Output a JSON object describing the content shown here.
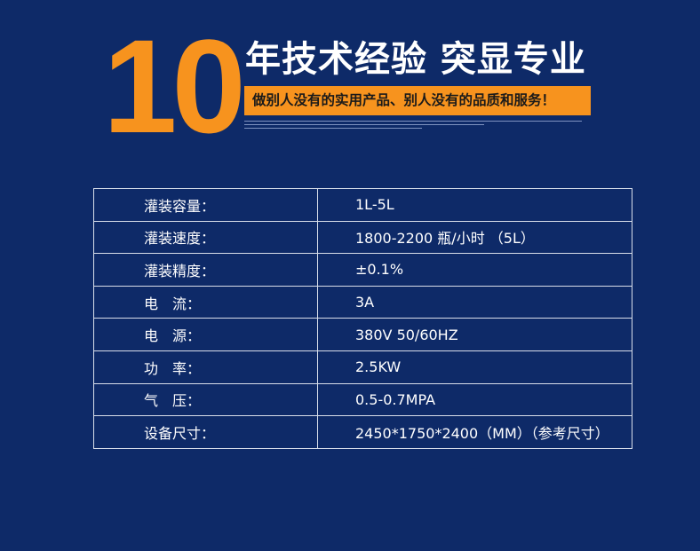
{
  "header": {
    "number": "10",
    "title": "年技术经验 突显专业",
    "slogan": "做别人没有的实用产品、别人没有的品质和服务！"
  },
  "table": {
    "rows": [
      [
        "灌装容量：",
        "1L-5L"
      ],
      [
        "灌装速度：",
        "1800-2200 瓶/小时 （5L）"
      ],
      [
        "灌装精度：",
        "±0.1%"
      ],
      [
        "电　流：",
        "3A"
      ],
      [
        "电　源：",
        "380V 50/60HZ"
      ],
      [
        "功　率：",
        "2.5KW"
      ],
      [
        "气　压：",
        "0.5-0.7MPA"
      ],
      [
        "设备尺寸：",
        "2450*1750*2400（MM）（参考尺寸）"
      ]
    ]
  }
}
